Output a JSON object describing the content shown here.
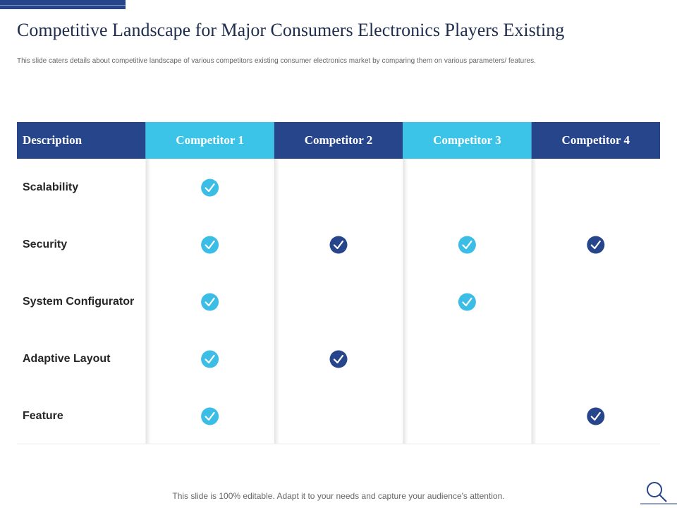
{
  "header": {
    "title": "Competitive Landscape for Major Consumers Electronics Players Existing",
    "subtitle": "This slide caters details about competitive landscape of various competitors existing consumer electronics market by comparing them on various parameters/ features."
  },
  "table": {
    "columns": [
      "Description",
      "Competitor 1",
      "Competitor 2",
      "Competitor 3",
      "Competitor 4"
    ],
    "rows": [
      {
        "label": "Scalability",
        "checks": [
          true,
          false,
          false,
          false
        ]
      },
      {
        "label": "Security",
        "checks": [
          true,
          true,
          true,
          true
        ]
      },
      {
        "label": "System Configurator",
        "checks": [
          true,
          false,
          true,
          false
        ]
      },
      {
        "label": "Adaptive Layout",
        "checks": [
          true,
          true,
          false,
          false
        ]
      },
      {
        "label": "Feature",
        "checks": [
          true,
          false,
          false,
          true
        ]
      }
    ]
  },
  "footer": {
    "text": "This slide is 100% editable. Adapt it to your needs and capture your audience's attention."
  }
}
